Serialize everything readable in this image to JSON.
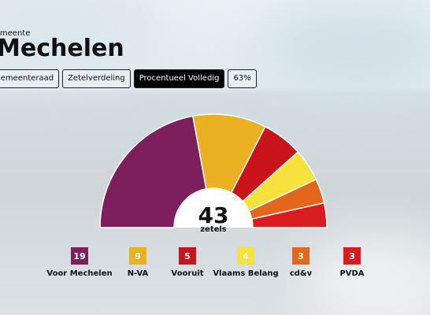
{
  "header": {
    "kicker": "Gemeente",
    "title": "Mechelen"
  },
  "tabs": [
    "Gemeenteraad",
    "Zetelverdeling",
    "Procentueel Volledig",
    "63%"
  ],
  "active_tab": 2,
  "chart_data": {
    "type": "half-donut",
    "total": 43,
    "total_label": "zetels",
    "categories": [
      "Voor Mechelen",
      "N-VA",
      "Vooruit",
      "Vlaams Belang",
      "cd&v",
      "PVDA"
    ],
    "values": [
      19,
      9,
      5,
      4,
      3,
      3
    ],
    "colors": [
      "#7d1f5c",
      "#ecb122",
      "#c8141a",
      "#f7e23e",
      "#e3661d",
      "#d91c1f"
    ]
  }
}
